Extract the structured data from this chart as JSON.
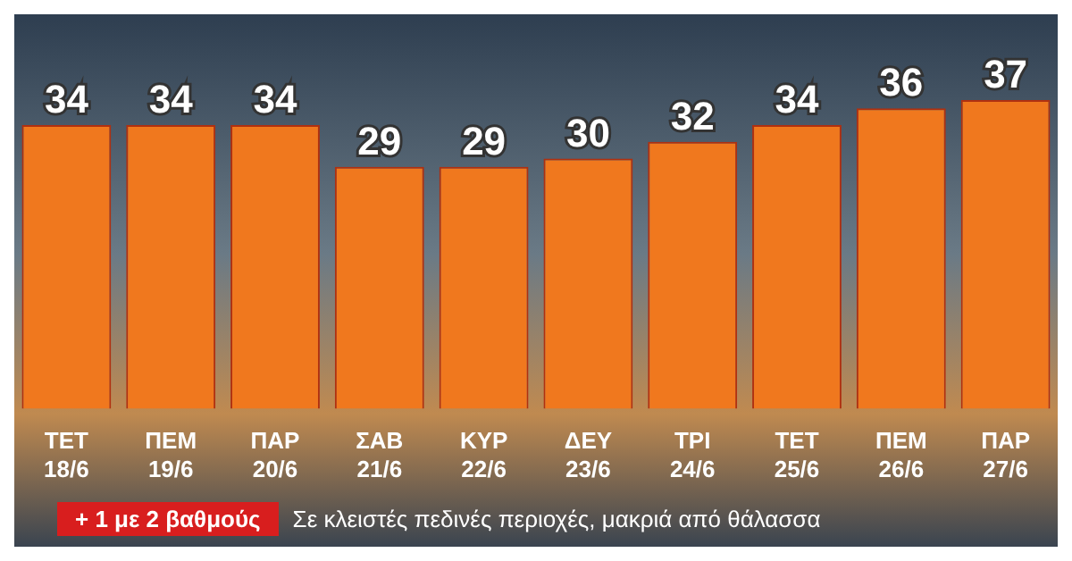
{
  "chart_data": {
    "type": "bar",
    "categories": [
      "ΤΕΤ 18/6",
      "ΠΕΜ 19/6",
      "ΠΑΡ 20/6",
      "ΣΑΒ 21/6",
      "ΚΥΡ 22/6",
      "ΔΕΥ 23/6",
      "ΤΡΙ 24/6",
      "ΤΕΤ 25/6",
      "ΠΕΜ 26/6",
      "ΠΑΡ 27/6"
    ],
    "values": [
      34,
      34,
      34,
      29,
      29,
      30,
      32,
      34,
      36,
      37
    ],
    "color": "#f0781e",
    "data_labels": true,
    "grid": false,
    "legend": false,
    "annotations": [
      "+ 1 με 2 βαθμούς",
      "Σε κλειστές πεδινές περιοχές, μακριά από θάλασσα"
    ]
  }
}
